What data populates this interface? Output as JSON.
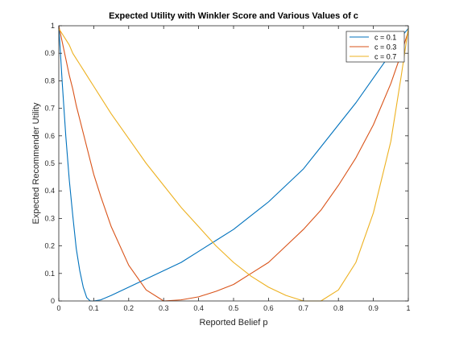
{
  "chart_data": {
    "type": "line",
    "title": "Expected Utility with Winkler Score and Various Values of c",
    "xlabel": "Reported Belief p",
    "ylabel": "Expected Recommender Utility",
    "xlim": [
      0,
      1
    ],
    "ylim": [
      0,
      1
    ],
    "xticks": [
      "0",
      "0.1",
      "0.2",
      "0.3",
      "0.4",
      "0.5",
      "0.6",
      "0.7",
      "0.8",
      "0.9",
      "1"
    ],
    "yticks": [
      "0",
      "0.1",
      "0.2",
      "0.3",
      "0.4",
      "0.5",
      "0.6",
      "0.7",
      "0.8",
      "0.9",
      "1"
    ],
    "grid": false,
    "legend_position": "top-right",
    "x": [
      0,
      0.01,
      0.02,
      0.03,
      0.04,
      0.05,
      0.06,
      0.07,
      0.08,
      0.09,
      0.1,
      0.12,
      0.15,
      0.2,
      0.25,
      0.3,
      0.35,
      0.4,
      0.45,
      0.5,
      0.55,
      0.6,
      0.65,
      0.7,
      0.75,
      0.8,
      0.85,
      0.9,
      0.95,
      0.98,
      1
    ],
    "series": [
      {
        "name": "c = 0.1",
        "color": "#0072BD",
        "values": [
          1.0,
          0.79,
          0.6,
          0.44,
          0.31,
          0.19,
          0.11,
          0.05,
          0.012,
          0.0,
          0.0,
          0.004,
          0.02,
          0.05,
          0.08,
          0.11,
          0.14,
          0.18,
          0.22,
          0.26,
          0.31,
          0.36,
          0.42,
          0.48,
          0.56,
          0.64,
          0.72,
          0.81,
          0.9,
          0.96,
          0.99
        ]
      },
      {
        "name": "c = 0.3",
        "color": "#D95319",
        "values": [
          1.0,
          0.94,
          0.88,
          0.82,
          0.77,
          0.71,
          0.66,
          0.61,
          0.56,
          0.51,
          0.46,
          0.38,
          0.27,
          0.13,
          0.04,
          0.0,
          0.004,
          0.015,
          0.035,
          0.06,
          0.1,
          0.14,
          0.2,
          0.26,
          0.33,
          0.42,
          0.52,
          0.64,
          0.79,
          0.9,
          0.98
        ]
      },
      {
        "name": "c = 0.7",
        "color": "#EDB120",
        "values": [
          0.99,
          0.97,
          0.95,
          0.93,
          0.9,
          0.88,
          0.86,
          0.84,
          0.82,
          0.8,
          0.78,
          0.74,
          0.68,
          0.59,
          0.5,
          0.42,
          0.34,
          0.27,
          0.2,
          0.14,
          0.09,
          0.05,
          0.02,
          0.0,
          0.0,
          0.04,
          0.14,
          0.32,
          0.58,
          0.82,
          0.99
        ]
      }
    ]
  }
}
